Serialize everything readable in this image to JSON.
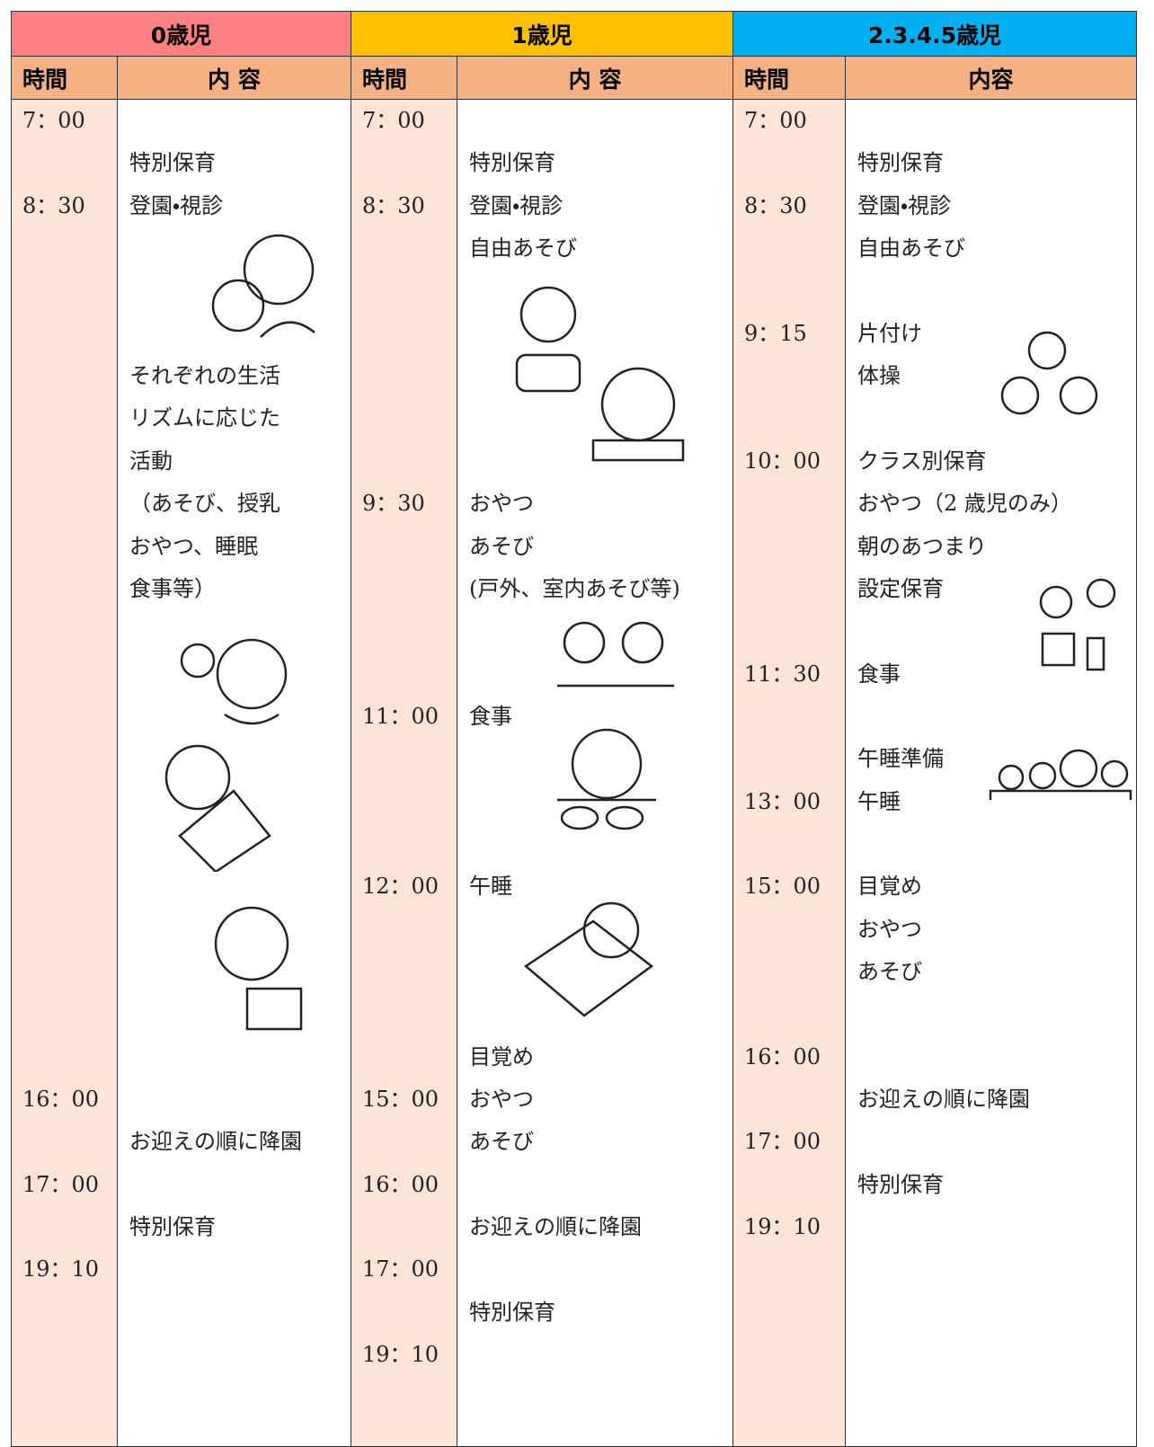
{
  "groups": [
    {
      "title": "0歳児",
      "time_header": "時間",
      "content_header": "内 容",
      "times": [
        "7：00",
        "8：30",
        "16：00",
        "17：00",
        "19：10"
      ],
      "contents": [
        "特別保育",
        "登園・視診",
        "それぞれの生活",
        "リズムに応じた",
        "活動",
        "（あそび、授乳",
        "おやつ、睡眠",
        "食事等）",
        "お迎えの順に降園",
        "特別保育"
      ]
    },
    {
      "title": "1歳児",
      "time_header": "時間",
      "content_header": "内 容",
      "times": [
        "7：00",
        "8：30",
        "9：30",
        "11：00",
        "12：00",
        "15：00",
        "16：00",
        "17：00",
        "19：10"
      ],
      "contents": [
        "特別保育",
        "登園・視診",
        "自由あそび",
        "おやつ",
        "あそび",
        "(戸外、室内あそび等)",
        "食事",
        "午睡",
        "目覚め",
        "おやつ",
        "あそび",
        "お迎えの順に降園",
        "特別保育"
      ]
    },
    {
      "title": "2.3.4.5歳児",
      "time_header": "時間",
      "content_header": "内容",
      "times": [
        "7：00",
        "8：30",
        "9：15",
        "10：00",
        "11：30",
        "13：00",
        "15：00",
        "16：00",
        "17：00",
        "19：10"
      ],
      "contents": [
        "特別保育",
        "登園・視診",
        "自由あそび",
        "片付け",
        "体操",
        "クラス別保育",
        "おやつ（2 歳児のみ）",
        "朝のあつまり",
        "設定保育",
        "食事",
        "午睡準備",
        "午睡",
        "目覚め",
        "おやつ",
        "あそび",
        "お迎えの順に降園",
        "特別保育"
      ]
    }
  ]
}
